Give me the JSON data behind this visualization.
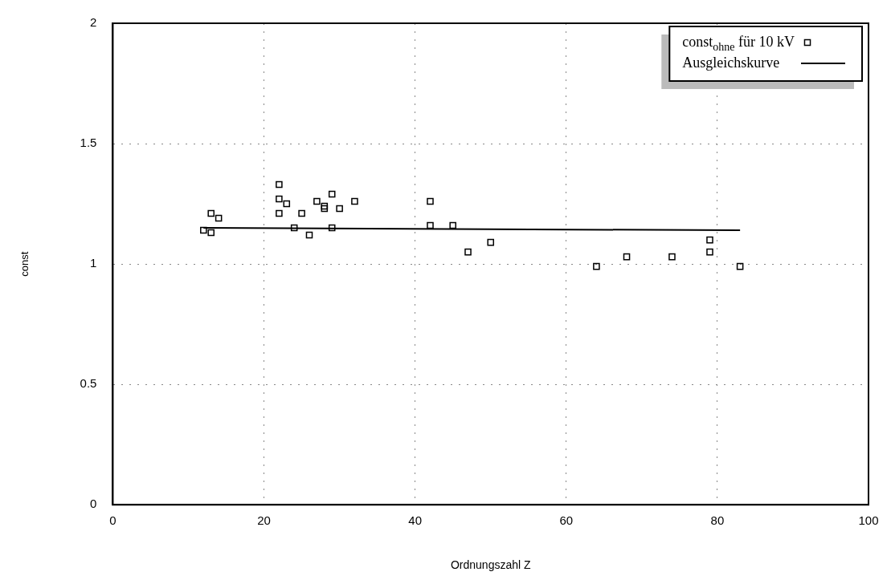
{
  "chart_data": {
    "type": "scatter",
    "xlabel": "Ordnungszahl Z",
    "ylabel": "const",
    "xlim": [
      0,
      100
    ],
    "xticks": [
      0,
      20,
      40,
      60,
      80,
      100
    ],
    "ylim": [
      0,
      2
    ],
    "yticks": [
      0,
      0.5,
      1,
      1.5,
      2
    ],
    "grid": true,
    "legend": "top right",
    "series": [
      {
        "name": "const$_{ohne}$ für 10 kV",
        "color": "#000000",
        "marker": "square",
        "x": [
          12,
          13,
          13,
          14,
          22,
          22,
          23,
          22,
          24,
          25,
          26,
          27,
          28,
          28,
          29,
          29,
          30,
          32,
          42,
          42,
          45,
          50,
          47,
          64,
          68,
          74,
          79,
          79,
          83
        ],
        "values": [
          1.14,
          1.13,
          1.21,
          1.19,
          1.33,
          1.27,
          1.25,
          1.21,
          1.15,
          1.21,
          1.12,
          1.26,
          1.24,
          1.23,
          1.29,
          1.15,
          1.23,
          1.26,
          1.26,
          1.16,
          1.16,
          1.09,
          1.05,
          0.99,
          1.03,
          1.03,
          1.1,
          1.05,
          0.99
        ]
      },
      {
        "name": "Ausgleichskurve",
        "type": "line",
        "color": "#000000",
        "marker": "none",
        "x": [
          12,
          83
        ],
        "values": [
          1.15,
          1.14
        ]
      }
    ]
  }
}
